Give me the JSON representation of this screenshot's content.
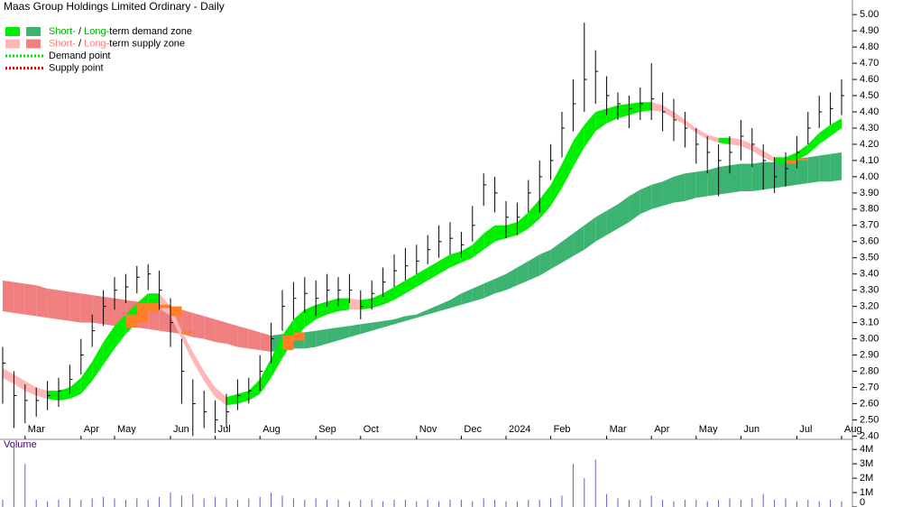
{
  "chart_data": {
    "type": "ohlc",
    "title": "Maas Group Holdings Limited Ordinary - Daily",
    "legend": [
      {
        "short": "Short-",
        "sep": " / ",
        "long": "Long-",
        "rest": "term demand zone",
        "short_color": "#00ee00",
        "long_color": "#3cb371",
        "text_color": "#00b000"
      },
      {
        "short": "Short-",
        "sep": " / ",
        "long": "Long-",
        "rest": "term supply zone",
        "short_color": "#ffb6b6",
        "long_color": "#f08080",
        "text_color": "#ff8080"
      },
      {
        "text": "Demand point",
        "color": "#00dd00"
      },
      {
        "text": "Supply point",
        "color": "#dd0000"
      }
    ],
    "categories": [
      null,
      null,
      "Mar",
      null,
      null,
      null,
      null,
      "Apr",
      null,
      null,
      "May",
      null,
      null,
      null,
      null,
      "Jun",
      null,
      null,
      null,
      "Jul",
      null,
      null,
      null,
      "Aug",
      null,
      null,
      null,
      null,
      "Sep",
      null,
      null,
      null,
      "Oct",
      null,
      null,
      null,
      null,
      "Nov",
      null,
      null,
      null,
      "Dec",
      null,
      null,
      null,
      "2024",
      null,
      null,
      null,
      "Feb",
      null,
      null,
      null,
      null,
      "Mar",
      null,
      null,
      null,
      "Apr",
      null,
      null,
      null,
      "May",
      null,
      null,
      null,
      "Jun",
      null,
      null,
      null,
      null,
      "Jul",
      null,
      null,
      null,
      "Aug"
    ],
    "high": [
      2.95,
      2.8,
      2.72,
      2.7,
      2.74,
      2.76,
      2.84,
      3.0,
      3.15,
      3.3,
      3.38,
      3.4,
      3.45,
      3.46,
      3.42,
      3.25,
      3.0,
      2.75,
      2.68,
      2.62,
      2.66,
      2.75,
      2.76,
      2.9,
      3.1,
      3.3,
      3.35,
      3.38,
      3.36,
      3.4,
      3.38,
      3.4,
      3.3,
      3.36,
      3.44,
      3.52,
      3.56,
      3.58,
      3.64,
      3.7,
      3.72,
      3.66,
      3.82,
      4.02,
      4.0,
      3.85,
      3.84,
      3.98,
      4.1,
      4.2,
      4.4,
      4.6,
      4.95,
      4.78,
      4.62,
      4.52,
      4.5,
      4.55,
      4.7,
      4.52,
      4.48,
      4.4,
      4.3,
      4.25,
      4.2,
      4.25,
      4.35,
      4.3,
      4.2,
      4.12,
      4.15,
      4.25,
      4.4,
      4.5,
      4.52,
      4.6
    ],
    "low": [
      2.6,
      2.45,
      2.48,
      2.52,
      2.56,
      2.58,
      2.66,
      2.78,
      2.95,
      3.08,
      3.18,
      3.22,
      3.28,
      3.3,
      3.18,
      2.95,
      2.6,
      2.4,
      2.45,
      2.42,
      2.45,
      2.56,
      2.6,
      2.68,
      2.85,
      3.05,
      3.12,
      3.16,
      3.14,
      3.2,
      3.2,
      3.22,
      3.12,
      3.18,
      3.26,
      3.32,
      3.36,
      3.4,
      3.46,
      3.5,
      3.52,
      3.5,
      3.6,
      3.82,
      3.78,
      3.62,
      3.64,
      3.78,
      3.78,
      3.98,
      4.12,
      4.28,
      4.4,
      4.45,
      4.38,
      4.35,
      4.3,
      4.35,
      4.35,
      4.28,
      4.22,
      4.18,
      4.08,
      4.02,
      3.88,
      4.02,
      4.1,
      4.06,
      3.92,
      3.9,
      3.94,
      4.05,
      4.2,
      4.3,
      4.32,
      4.38
    ],
    "close": [
      2.85,
      2.65,
      2.62,
      2.62,
      2.65,
      2.68,
      2.75,
      2.9,
      3.05,
      3.2,
      3.3,
      3.32,
      3.38,
      3.4,
      3.3,
      3.1,
      2.8,
      2.6,
      2.55,
      2.5,
      2.55,
      2.65,
      2.68,
      2.8,
      3.0,
      3.2,
      3.25,
      3.28,
      3.25,
      3.3,
      3.3,
      3.3,
      3.2,
      3.28,
      3.35,
      3.42,
      3.45,
      3.48,
      3.55,
      3.6,
      3.62,
      3.58,
      3.7,
      3.95,
      3.9,
      3.75,
      3.75,
      3.9,
      4.0,
      4.1,
      4.3,
      4.45,
      4.6,
      4.65,
      4.5,
      4.45,
      4.42,
      4.45,
      4.48,
      4.4,
      4.35,
      4.3,
      4.2,
      4.15,
      4.1,
      4.15,
      4.25,
      4.2,
      4.1,
      4.0,
      4.05,
      4.15,
      4.3,
      4.4,
      4.42,
      4.5
    ],
    "short_zone_upper": [
      2.82,
      2.78,
      2.74,
      2.7,
      2.68,
      2.68,
      2.7,
      2.76,
      2.86,
      2.98,
      3.08,
      3.15,
      3.22,
      3.28,
      3.28,
      3.2,
      3.05,
      2.92,
      2.8,
      2.7,
      2.64,
      2.66,
      2.68,
      2.75,
      2.88,
      3.02,
      3.12,
      3.18,
      3.21,
      3.23,
      3.25,
      3.25,
      3.24,
      3.25,
      3.28,
      3.32,
      3.36,
      3.4,
      3.44,
      3.48,
      3.52,
      3.54,
      3.58,
      3.65,
      3.7,
      3.7,
      3.72,
      3.78,
      3.86,
      3.95,
      4.08,
      4.22,
      4.32,
      4.4,
      4.42,
      4.44,
      4.45,
      4.46,
      4.46,
      4.44,
      4.4,
      4.35,
      4.3,
      4.26,
      4.24,
      4.24,
      4.23,
      4.2,
      4.16,
      4.12,
      4.12,
      4.15,
      4.2,
      4.27,
      4.32,
      4.36
    ],
    "short_zone_lower": [
      2.76,
      2.72,
      2.68,
      2.65,
      2.63,
      2.62,
      2.63,
      2.66,
      2.74,
      2.84,
      2.94,
      3.03,
      3.1,
      3.17,
      3.19,
      3.14,
      3.0,
      2.86,
      2.74,
      2.64,
      2.59,
      2.6,
      2.62,
      2.66,
      2.76,
      2.88,
      2.99,
      3.07,
      3.12,
      3.15,
      3.17,
      3.18,
      3.18,
      3.19,
      3.21,
      3.24,
      3.28,
      3.32,
      3.36,
      3.4,
      3.44,
      3.47,
      3.5,
      3.55,
      3.6,
      3.62,
      3.64,
      3.68,
      3.74,
      3.82,
      3.93,
      4.06,
      4.18,
      4.28,
      4.33,
      4.36,
      4.38,
      4.4,
      4.41,
      4.4,
      4.36,
      4.32,
      4.27,
      4.23,
      4.21,
      4.2,
      4.19,
      4.16,
      4.12,
      4.09,
      4.08,
      4.1,
      4.14,
      4.2,
      4.25,
      4.3
    ],
    "long_zone_upper": [
      3.36,
      3.35,
      3.34,
      3.33,
      3.31,
      3.3,
      3.29,
      3.28,
      3.27,
      3.26,
      3.25,
      3.24,
      3.23,
      3.22,
      3.21,
      3.2,
      3.18,
      3.16,
      3.14,
      3.12,
      3.1,
      3.08,
      3.06,
      3.04,
      3.02,
      3.03,
      3.04,
      3.04,
      3.05,
      3.06,
      3.07,
      3.08,
      3.09,
      3.1,
      3.11,
      3.12,
      3.14,
      3.15,
      3.18,
      3.21,
      3.24,
      3.28,
      3.31,
      3.34,
      3.37,
      3.4,
      3.44,
      3.48,
      3.52,
      3.55,
      3.6,
      3.65,
      3.7,
      3.75,
      3.79,
      3.83,
      3.88,
      3.92,
      3.95,
      3.97,
      4.0,
      4.02,
      4.03,
      4.04,
      4.06,
      4.07,
      4.08,
      4.08,
      4.09,
      4.09,
      4.1,
      4.11,
      4.12,
      4.13,
      4.14,
      4.15
    ],
    "long_zone_lower": [
      3.17,
      3.16,
      3.15,
      3.14,
      3.13,
      3.12,
      3.11,
      3.1,
      3.1,
      3.09,
      3.08,
      3.07,
      3.07,
      3.06,
      3.05,
      3.04,
      3.03,
      3.01,
      3.0,
      2.98,
      2.97,
      2.95,
      2.94,
      2.93,
      2.92,
      2.93,
      2.94,
      2.94,
      2.95,
      2.97,
      2.99,
      3.01,
      3.03,
      3.05,
      3.07,
      3.09,
      3.11,
      3.13,
      3.15,
      3.17,
      3.19,
      3.21,
      3.23,
      3.25,
      3.28,
      3.3,
      3.33,
      3.36,
      3.39,
      3.43,
      3.47,
      3.51,
      3.55,
      3.6,
      3.64,
      3.68,
      3.72,
      3.77,
      3.8,
      3.82,
      3.84,
      3.85,
      3.87,
      3.88,
      3.89,
      3.9,
      3.91,
      3.91,
      3.92,
      3.93,
      3.94,
      3.95,
      3.96,
      3.97,
      3.97,
      3.98
    ],
    "zone_colors": {
      "short_up": "#00ee00",
      "short_down": "#ffb6b6",
      "long_up": "#3cb371",
      "long_down": "#f08080",
      "overlap": "#ff7f27"
    },
    "bar_color": "#000000",
    "ylim": [
      2.38,
      5.09
    ],
    "yticks": [
      {
        "value": 2.4,
        "label": "2.40"
      },
      {
        "value": 2.5,
        "label": "2.50"
      },
      {
        "value": 2.6,
        "label": "2.60"
      },
      {
        "value": 2.7,
        "label": "2.70"
      },
      {
        "value": 2.8,
        "label": "2.80"
      },
      {
        "value": 2.9,
        "label": "2.90"
      },
      {
        "value": 3.0,
        "label": "3.00"
      },
      {
        "value": 3.1,
        "label": "3.10"
      },
      {
        "value": 3.2,
        "label": "3.20"
      },
      {
        "value": 3.3,
        "label": "3.30"
      },
      {
        "value": 3.4,
        "label": "3.40"
      },
      {
        "value": 3.5,
        "label": "3.50"
      },
      {
        "value": 3.6,
        "label": "3.60"
      },
      {
        "value": 3.7,
        "label": "3.70"
      },
      {
        "value": 3.8,
        "label": "3.80"
      },
      {
        "value": 3.9,
        "label": "3.90"
      },
      {
        "value": 4.0,
        "label": "4.00"
      },
      {
        "value": 4.1,
        "label": "4.10"
      },
      {
        "value": 4.2,
        "label": "4.20"
      },
      {
        "value": 4.3,
        "label": "4.30"
      },
      {
        "value": 4.4,
        "label": "4.40"
      },
      {
        "value": 4.5,
        "label": "4.50"
      },
      {
        "value": 4.6,
        "label": "4.60"
      },
      {
        "value": 4.7,
        "label": "4.70"
      },
      {
        "value": 4.8,
        "label": "4.80"
      },
      {
        "value": 4.9,
        "label": "4.90"
      },
      {
        "value": 5.0,
        "label": "5.00"
      }
    ],
    "volume": {
      "title": "Volume",
      "color": "#6060c0",
      "values": [
        0.5,
        4.3,
        3.0,
        0.5,
        0.4,
        0.5,
        0.6,
        0.5,
        0.6,
        0.7,
        0.6,
        0.5,
        0.6,
        0.5,
        0.7,
        1.0,
        0.8,
        0.9,
        0.6,
        0.7,
        0.6,
        0.5,
        0.6,
        0.7,
        1.0,
        0.8,
        0.6,
        0.5,
        0.6,
        0.5,
        0.5,
        0.4,
        0.5,
        0.5,
        0.4,
        0.5,
        0.5,
        0.4,
        0.5,
        0.4,
        0.5,
        0.5,
        0.4,
        0.6,
        0.5,
        0.4,
        0.4,
        0.5,
        0.5,
        0.6,
        0.8,
        3.0,
        2.0,
        3.3,
        0.9,
        0.6,
        0.5,
        0.5,
        0.8,
        0.5,
        0.4,
        0.5,
        0.5,
        0.4,
        0.5,
        0.6,
        0.5,
        0.6,
        0.9,
        0.5,
        0.6,
        0.4,
        0.5,
        0.4,
        0.5,
        0.4
      ],
      "ylim": [
        0,
        4.7
      ],
      "yticks": [
        0,
        {
          "value": 1,
          "label": "1M"
        },
        {
          "value": 2,
          "label": "2M"
        },
        {
          "value": 3,
          "label": "3M"
        },
        {
          "value": 4,
          "label": "4M"
        }
      ]
    }
  }
}
